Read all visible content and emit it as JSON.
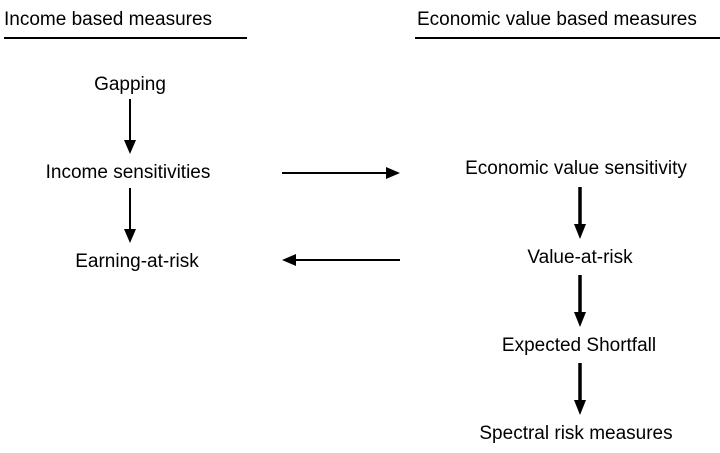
{
  "headings": {
    "left": "Income based measures",
    "right": "Economic value based measures"
  },
  "nodes": {
    "gapping": "Gapping",
    "income_sensitivities": "Income sensitivities",
    "earning_at_risk": "Earning-at-risk",
    "economic_value_sensitivity": "Economic value sensitivity",
    "value_at_risk": "Value-at-risk",
    "expected_shortfall": "Expected Shortfall",
    "spectral_risk_measures": "Spectral risk measures"
  },
  "colors": {
    "text": "#000000",
    "background": "#ffffff"
  }
}
